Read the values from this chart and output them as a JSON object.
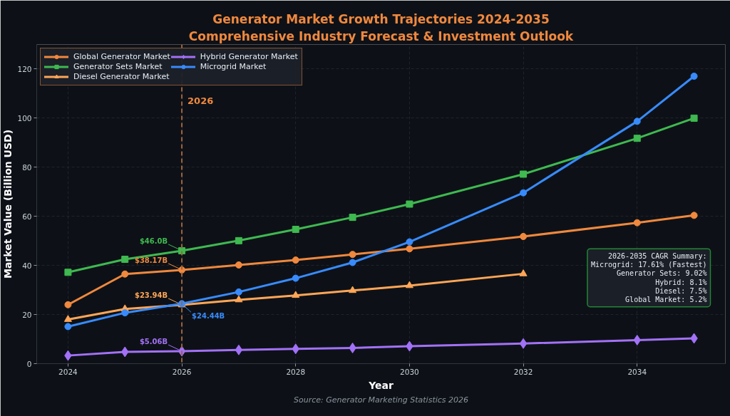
{
  "chart_data": {
    "type": "line",
    "title": "Generator Market Growth Trajectories 2024-2035",
    "subtitle": "Comprehensive Industry Forecast & Investment Outlook",
    "xlabel": "Year",
    "ylabel": "Market Value (Billion USD)",
    "x": [
      2024,
      2025,
      2026,
      2027,
      2028,
      2029,
      2030,
      2032,
      2034,
      2035
    ],
    "series": [
      {
        "name": "Global Generator Market",
        "color": "#f0883e",
        "marker": "circle",
        "values": [
          24.0,
          36.5,
          38.17,
          40.2,
          42.2,
          44.5,
          46.8,
          51.8,
          57.4,
          60.4
        ],
        "value_labels": [
          null,
          null,
          "$38.17B",
          null,
          null,
          null,
          null,
          null,
          null,
          null
        ]
      },
      {
        "name": "Generator Sets Market",
        "color": "#3fb950",
        "marker": "square",
        "values": [
          37.2,
          42.5,
          46.0,
          50.1,
          54.7,
          59.6,
          65.0,
          77.2,
          91.8,
          100.0
        ],
        "value_labels": [
          null,
          null,
          "$46.0B",
          null,
          null,
          null,
          null,
          null,
          null,
          null
        ]
      },
      {
        "name": "Diesel Generator Market",
        "color": "#ffa657",
        "marker": "triangle",
        "values": [
          18.0,
          22.3,
          23.94,
          26.0,
          27.8,
          29.8,
          31.8,
          36.6,
          null,
          null
        ],
        "value_labels": [
          null,
          null,
          "$23.94B",
          null,
          null,
          null,
          null,
          null,
          null,
          null
        ]
      },
      {
        "name": "Hybrid Generator Market",
        "color": "#a371f7",
        "marker": "diamond",
        "values": [
          3.3,
          4.8,
          5.06,
          5.6,
          6.0,
          6.4,
          7.1,
          8.2,
          9.6,
          10.3
        ],
        "value_labels": [
          null,
          null,
          "$5.06B",
          null,
          null,
          null,
          null,
          null,
          null,
          null
        ]
      },
      {
        "name": "Microgrid Market",
        "color": "#388bfd",
        "marker": "circle",
        "values": [
          15.1,
          20.7,
          24.44,
          29.2,
          34.8,
          41.2,
          49.6,
          69.6,
          98.7,
          117.1
        ],
        "value_labels": [
          null,
          null,
          "$24.44B",
          null,
          null,
          null,
          null,
          null,
          null,
          null
        ]
      }
    ],
    "xlim": [
      2023.45,
      2035.55
    ],
    "ylim": [
      0,
      130
    ],
    "xticks": [
      2024,
      2026,
      2028,
      2030,
      2032,
      2034
    ],
    "yticks": [
      0,
      20,
      40,
      60,
      80,
      100,
      120
    ],
    "grid": true,
    "legend": "top left",
    "line_style": "solid",
    "ref_lines": [
      {
        "axis": "x",
        "value": 2026,
        "label": "2026",
        "color": "#a0643c",
        "line_style": "dashed"
      }
    ],
    "annotations": [
      "2026-2035 CAGR Summary:\nMicrogrid: 17.61% (Fastest)\nGenerator Sets: 9.02%\nHybrid: 8.1%\nDiesel: 7.5%\nGlobal Market: 5.2%",
      "Source: Generator Marketing Statistics 2026"
    ]
  }
}
